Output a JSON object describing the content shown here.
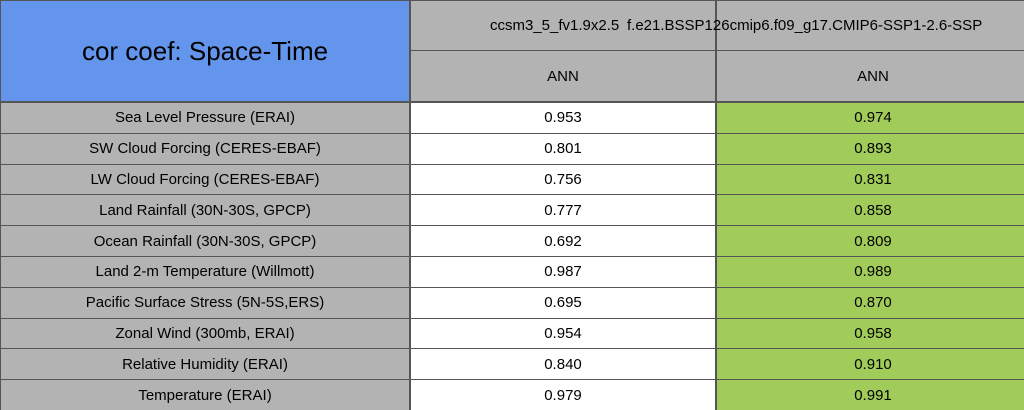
{
  "table": {
    "title": "cor coef: Space-Time",
    "columns": [
      "ccsm3_5_fv1.9x2.5",
      "f.e21.BSSP126cmip6.f09_g17.CMIP6-SSP1-2.6-SSP"
    ],
    "subheaders": [
      "ANN",
      "ANN"
    ],
    "rows": [
      [
        "Sea Level Pressure (ERAI)",
        "0.953",
        "0.974"
      ],
      [
        "SW Cloud Forcing (CERES-EBAF)",
        "0.801",
        "0.893"
      ],
      [
        "LW Cloud Forcing (CERES-EBAF)",
        "0.756",
        "0.831"
      ],
      [
        "Land Rainfall (30N-30S, GPCP)",
        "0.777",
        "0.858"
      ],
      [
        "Ocean Rainfall (30N-30S, GPCP)",
        "0.692",
        "0.809"
      ],
      [
        "Land 2-m Temperature (Willmott)",
        "0.987",
        "0.989"
      ],
      [
        "Pacific Surface Stress (5N-5S,ERS)",
        "0.695",
        "0.870"
      ],
      [
        "Zonal Wind (300mb, ERAI)",
        "0.954",
        "0.958"
      ],
      [
        "Relative Humidity (ERAI)",
        "0.840",
        "0.910"
      ],
      [
        "Temperature (ERAI)",
        "0.979",
        "0.991"
      ]
    ]
  }
}
